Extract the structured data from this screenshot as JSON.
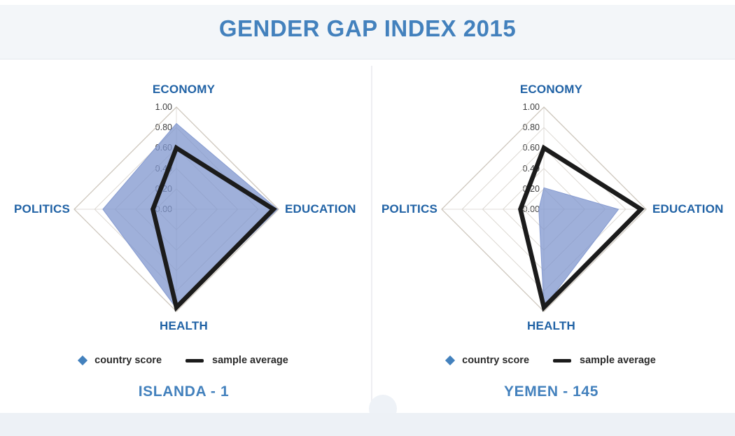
{
  "title": "GENDER GAP INDEX 2015",
  "legend": {
    "country_label": "country score",
    "average_label": "sample average"
  },
  "colors": {
    "title_blue": "#4381bd",
    "axis_label_blue": "#2062a5",
    "tick_gray": "#3f3f3f",
    "country_fill": "#7f96ce",
    "country_fill_opacity": "0.75",
    "average_line": "#1b1b1b",
    "grid_line": "#dcd8d2",
    "grid_outer": "#cdc6bc",
    "header_band": "#f3f6f9",
    "footer_band": "#edf1f6"
  },
  "chart_data": [
    {
      "type": "radar",
      "title": "ISLANDA - 1",
      "axes": [
        "ECONOMY",
        "EDUCATION",
        "HEALTH",
        "POLITICS"
      ],
      "tick_labels": [
        "1.00",
        "0.80",
        "0.60",
        "0.40",
        "0.20",
        "0.00"
      ],
      "range": [
        0,
        1
      ],
      "grid_interval": 0.2,
      "legend_position": "bottom",
      "series": [
        {
          "name": "country score",
          "style": "filled_area",
          "values": [
            0.84,
            0.99,
            0.97,
            0.72
          ]
        },
        {
          "name": "sample average",
          "style": "thick_line",
          "values": [
            0.6,
            0.95,
            0.96,
            0.23
          ]
        }
      ]
    },
    {
      "type": "radar",
      "title": "YEMEN - 145",
      "axes": [
        "ECONOMY",
        "EDUCATION",
        "HEALTH",
        "POLITICS"
      ],
      "tick_labels": [
        "1.00",
        "0.80",
        "0.60",
        "0.40",
        "0.20",
        "0.00"
      ],
      "range": [
        0,
        1
      ],
      "grid_interval": 0.2,
      "legend_position": "bottom",
      "series": [
        {
          "name": "country score",
          "style": "filled_area",
          "values": [
            0.21,
            0.73,
            0.96,
            0.05
          ]
        },
        {
          "name": "sample average",
          "style": "thick_line",
          "values": [
            0.6,
            0.95,
            0.96,
            0.23
          ]
        }
      ]
    }
  ]
}
